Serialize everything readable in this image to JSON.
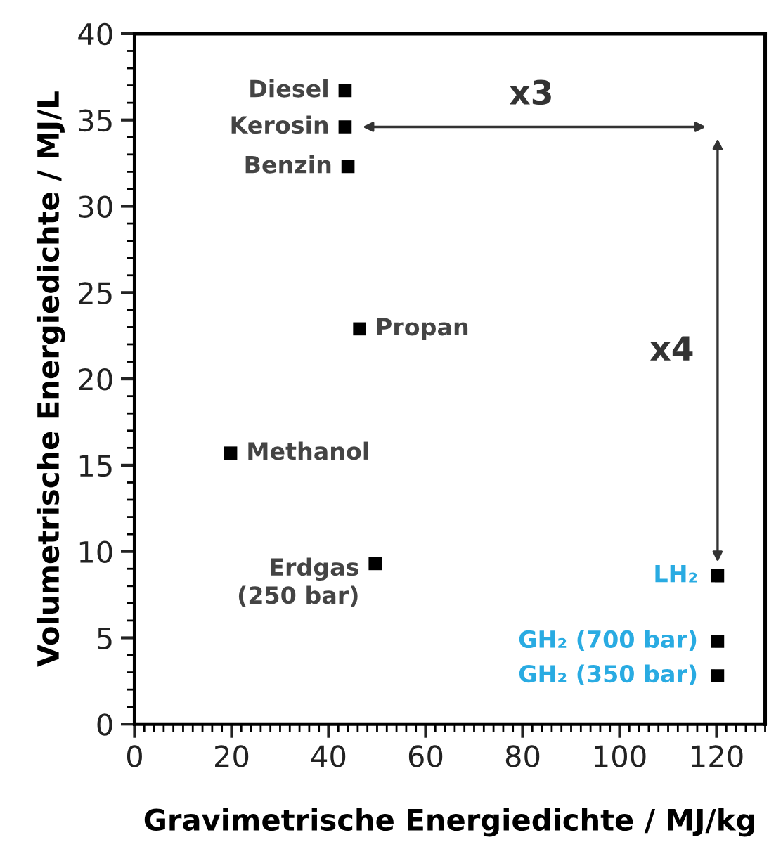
{
  "chart_data": {
    "type": "scatter",
    "xlabel": "Gravimetrische Energiedichte / MJ/kg",
    "ylabel": "Volumetrische Energiedichte / MJ/L",
    "series": [
      {
        "color": "#000000",
        "x": [
          43.4,
          43.4,
          44,
          46.4,
          19.8,
          49.6,
          120.2,
          120.2,
          120.2
        ],
        "values": [
          36.7,
          34.6,
          32.3,
          22.9,
          15.7,
          9.3,
          8.6,
          4.8,
          2.8
        ]
      }
    ],
    "annotations": [
      {
        "text": "Diesel",
        "x": 43.4,
        "y": 36.7
      },
      {
        "text": "Kerosin",
        "x": 43.4,
        "y": 34.6
      },
      {
        "text": "Benzin",
        "x": 44,
        "y": 32.3
      },
      {
        "text": "Propan",
        "x": 46.4,
        "y": 22.9
      },
      {
        "text": "Methanol",
        "x": 19.8,
        "y": 15.7
      },
      {
        "text": "Erdgas\n(250 bar)",
        "x": 49.6,
        "y": 9.3
      },
      {
        "text": "LH₂",
        "x": 120.2,
        "y": 8.6
      },
      {
        "text": "GH₂ (700 bar)",
        "x": 120.2,
        "y": 4.8
      },
      {
        "text": "GH₂ (350 bar)",
        "x": 120.2,
        "y": 2.8
      },
      "x3",
      "x4"
    ],
    "marker": "square",
    "xlim": [
      0,
      130
    ],
    "xticks": [
      0,
      20,
      40,
      60,
      80,
      100,
      120
    ],
    "ylim": [
      0,
      40
    ],
    "yticks": [
      0,
      5,
      10,
      15,
      20,
      25,
      30,
      35,
      40
    ],
    "grid": false,
    "legend": false
  }
}
